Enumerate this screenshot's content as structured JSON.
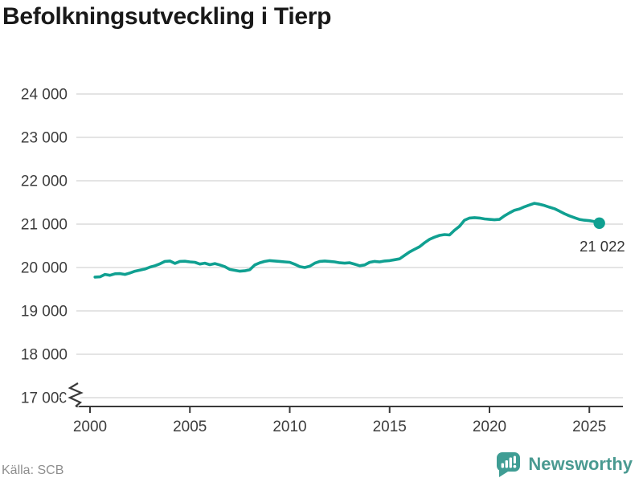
{
  "header": {
    "title": "Befolkningsutveckling i Tierp"
  },
  "footer": {
    "source": "Källa: SCB",
    "brand": "Newsworthy"
  },
  "colors": {
    "line": "#10a091",
    "grid": "#dcdcdc",
    "axis": "#3a3a3a",
    "tick_text": "#3d3d3d",
    "title": "#191919",
    "muted": "#8e8e8e",
    "brand": "#4a9a91",
    "brand_bubble": "#3f9d94",
    "end_label": "#333333",
    "background": "#ffffff"
  },
  "chart_data": {
    "type": "line",
    "title": "Befolkningsutveckling i Tierp",
    "xlabel": "",
    "ylabel": "",
    "source": "Källa: SCB",
    "grid": "horizontal",
    "legend": "none",
    "axis_break_at_bottom": true,
    "xlim": [
      1999.3,
      2026.7
    ],
    "ylim": [
      16800,
      24000
    ],
    "x_ticks": [
      {
        "value": 2000,
        "label": "2000"
      },
      {
        "value": 2005,
        "label": "2005"
      },
      {
        "value": 2010,
        "label": "2010"
      },
      {
        "value": 2015,
        "label": "2015"
      },
      {
        "value": 2020,
        "label": "2020"
      },
      {
        "value": 2025,
        "label": "2025"
      }
    ],
    "y_ticks": [
      {
        "value": 24000,
        "label": "24 000"
      },
      {
        "value": 23000,
        "label": "23 000"
      },
      {
        "value": 22000,
        "label": "22 000"
      },
      {
        "value": 21000,
        "label": "21 000"
      },
      {
        "value": 20000,
        "label": "20 000"
      },
      {
        "value": 19000,
        "label": "19 000"
      },
      {
        "value": 18000,
        "label": "18 000"
      },
      {
        "value": 17000,
        "label": "17 000"
      }
    ],
    "end_label": "21 022",
    "last_point": {
      "x": 2025.5,
      "value": 21022
    },
    "series": [
      {
        "name": "Befolkning",
        "x_unit": "year (quarterly steps)",
        "x_start": 2000.25,
        "x_step": 0.25,
        "values": [
          19780,
          19785,
          19840,
          19820,
          19855,
          19860,
          19840,
          19875,
          19915,
          19940,
          19965,
          20010,
          20040,
          20085,
          20140,
          20150,
          20095,
          20140,
          20145,
          20130,
          20120,
          20080,
          20100,
          20065,
          20090,
          20060,
          20020,
          19955,
          19935,
          19915,
          19925,
          19950,
          20060,
          20110,
          20140,
          20160,
          20150,
          20140,
          20130,
          20120,
          20075,
          20020,
          20000,
          20030,
          20100,
          20140,
          20150,
          20140,
          20130,
          20110,
          20100,
          20110,
          20075,
          20040,
          20060,
          20120,
          20140,
          20130,
          20150,
          20160,
          20180,
          20200,
          20280,
          20360,
          20420,
          20480,
          20570,
          20650,
          20700,
          20740,
          20760,
          20750,
          20860,
          20950,
          21090,
          21140,
          21150,
          21140,
          21120,
          21110,
          21100,
          21110,
          21190,
          21260,
          21320,
          21350,
          21400,
          21440,
          21480,
          21460,
          21430,
          21390,
          21355,
          21300,
          21240,
          21190,
          21150,
          21110,
          21090,
          21080,
          21060,
          21022
        ]
      }
    ]
  }
}
